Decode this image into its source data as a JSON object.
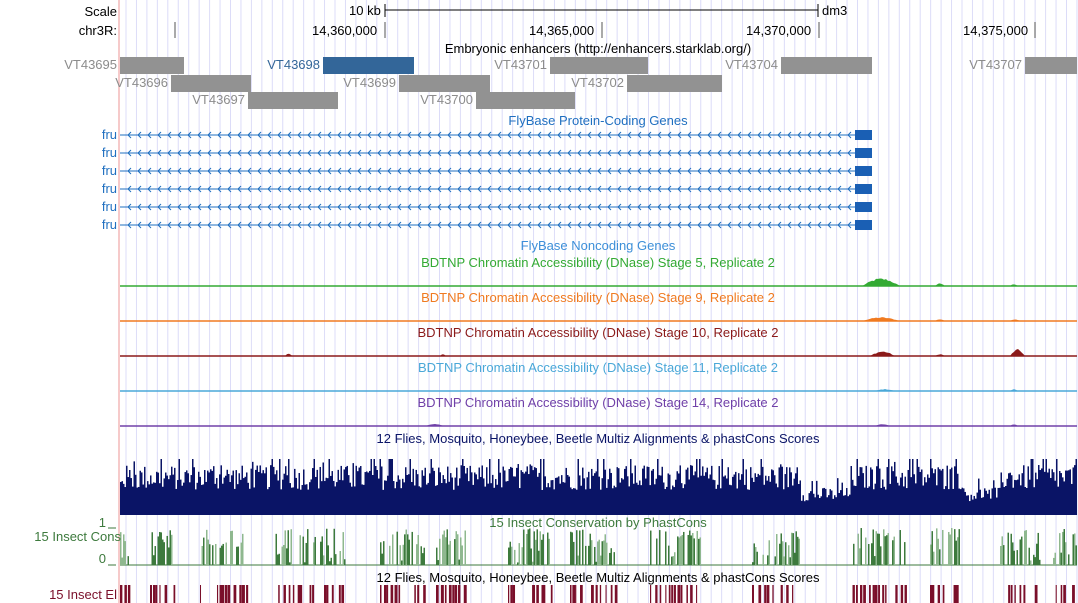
{
  "ruler": {
    "scale_label": "Scale",
    "scale_value": "10 kb",
    "assembly": "dm3",
    "chrom_label": "chr3R:",
    "ticks": [
      "14,360,000",
      "14,365,000",
      "14,370,000",
      "14,375,000"
    ]
  },
  "enhancers": {
    "title": "Embryonic enhancers (http://enhancers.starklab.org/)",
    "items": [
      {
        "name": "VT43695",
        "highlight": false
      },
      {
        "name": "VT43696",
        "highlight": false
      },
      {
        "name": "VT43697",
        "highlight": false
      },
      {
        "name": "VT43698",
        "highlight": true
      },
      {
        "name": "VT43699",
        "highlight": false
      },
      {
        "name": "VT43700",
        "highlight": false
      },
      {
        "name": "VT43701",
        "highlight": false
      },
      {
        "name": "VT43702",
        "highlight": false
      },
      {
        "name": "VT43704",
        "highlight": false
      },
      {
        "name": "VT43707",
        "highlight": false
      }
    ],
    "colors": {
      "default": "#929292",
      "highlight": "#336699"
    }
  },
  "genes": {
    "title": "FlyBase Protein-Coding Genes",
    "color": "#1f6fc0",
    "rows": [
      "fru",
      "fru",
      "fru",
      "fru",
      "fru",
      "fru"
    ]
  },
  "noncoding": {
    "title": "FlyBase Noncoding Genes",
    "color": "#3d8fd8"
  },
  "dnase": [
    {
      "title": "BDTNP Chromatin Accessibility (DNase) Stage 5, Replicate 2",
      "color": "#33aa33"
    },
    {
      "title": "BDTNP Chromatin Accessibility (DNase) Stage 9, Replicate 2",
      "color": "#f07a20"
    },
    {
      "title": "BDTNP Chromatin Accessibility (DNase) Stage 10, Replicate 2",
      "color": "#8b1a1a"
    },
    {
      "title": "BDTNP Chromatin Accessibility (DNase) Stage 11, Replicate 2",
      "color": "#4aa8d8"
    },
    {
      "title": "BDTNP Chromatin Accessibility (DNase) Stage 14, Replicate 2",
      "color": "#7040a8"
    }
  ],
  "multiz": {
    "title": "12 Flies, Mosquito, Honeybee, Beetle Multiz Alignments & phastCons Scores",
    "color": "#0a1466"
  },
  "cons": {
    "title": "15 Insect Conservation by PhastCons",
    "label": "15 Insect Cons",
    "ymax": "1",
    "ymin": "0",
    "color": "#3d7a3d"
  },
  "elements": {
    "title": "12 Flies, Mosquito, Honeybee, Beetle Multiz Alignments & phastCons Scores",
    "label": "15 Insect El",
    "color": "#7a0f2a"
  }
}
